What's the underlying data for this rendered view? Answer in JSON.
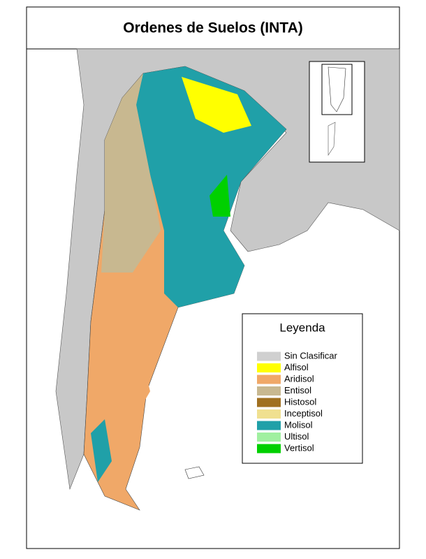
{
  "title": "Ordenes de Suelos  (INTA)",
  "legend": {
    "title": "Leyenda",
    "items": [
      {
        "label": "Sin Clasificar",
        "color": "#d0d0d0"
      },
      {
        "label": "Alfisol",
        "color": "#ffff00"
      },
      {
        "label": "Aridisol",
        "color": "#f0a868"
      },
      {
        "label": "Entisol",
        "color": "#c8b890"
      },
      {
        "label": "Histosol",
        "color": "#a07020"
      },
      {
        "label": "Inceptisol",
        "color": "#f0e090"
      },
      {
        "label": "Molisol",
        "color": "#20a0a8"
      },
      {
        "label": "Ultisol",
        "color": "#a0f0a0"
      },
      {
        "label": "Vertisol",
        "color": "#00d000"
      }
    ]
  }
}
